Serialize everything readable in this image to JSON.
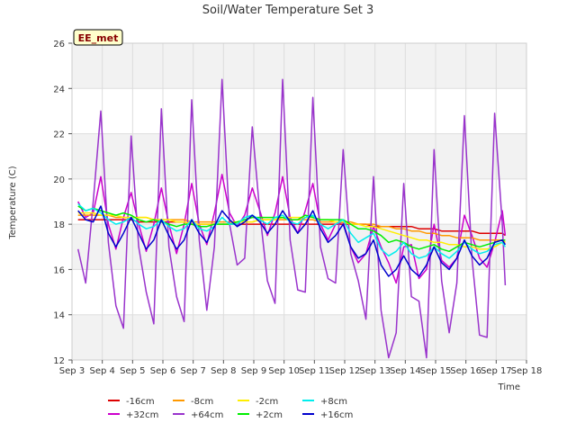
{
  "chart_data": {
    "type": "line",
    "title": "Soil/Water Temperature Set 3",
    "xlabel": "Time",
    "ylabel": "Temperature (C)",
    "annotation": "EE_met",
    "xlim": [
      3,
      18
    ],
    "ylim": [
      12,
      26
    ],
    "x_ticks": [
      {
        "value": 3,
        "label": "Sep 3"
      },
      {
        "value": 4,
        "label": "Sep 4"
      },
      {
        "value": 5,
        "label": "Sep 5"
      },
      {
        "value": 6,
        "label": "Sep 6"
      },
      {
        "value": 7,
        "label": "Sep 7"
      },
      {
        "value": 8,
        "label": "Sep 8"
      },
      {
        "value": 9,
        "label": "Sep 9"
      },
      {
        "value": 10,
        "label": "Sep 10"
      },
      {
        "value": 11,
        "label": "Sep 11"
      },
      {
        "value": 12,
        "label": "Sep 12"
      },
      {
        "value": 13,
        "label": "Sep 13"
      },
      {
        "value": 14,
        "label": "Sep 14"
      },
      {
        "value": 15,
        "label": "Sep 15"
      },
      {
        "value": 16,
        "label": "Sep 16"
      },
      {
        "value": 17,
        "label": "Sep 17"
      },
      {
        "value": 18,
        "label": "Sep 18"
      }
    ],
    "y_ticks": [
      12,
      14,
      16,
      18,
      20,
      22,
      24,
      26
    ],
    "grid": true,
    "bands": "alternating light gray",
    "legend_position": "bottom",
    "x_sample": [
      3.2,
      3.45,
      3.7,
      3.95,
      4.2,
      4.45,
      4.7,
      4.95,
      5.2,
      5.45,
      5.7,
      5.95,
      6.2,
      6.45,
      6.7,
      6.95,
      7.2,
      7.45,
      7.7,
      7.95,
      8.2,
      8.45,
      8.7,
      8.95,
      9.2,
      9.45,
      9.7,
      9.95,
      10.2,
      10.45,
      10.7,
      10.95,
      11.2,
      11.45,
      11.7,
      11.95,
      12.2,
      12.45,
      12.7,
      12.95,
      13.2,
      13.45,
      13.7,
      13.95,
      14.2,
      14.45,
      14.7,
      14.95,
      15.2,
      15.45,
      15.7,
      15.95,
      16.2,
      16.45,
      16.7,
      16.95,
      17.2,
      17.3
    ],
    "series": [
      {
        "name": "-16cm",
        "color": "#dd0000",
        "values": [
          18.2,
          18.2,
          18.2,
          18.2,
          18.2,
          18.2,
          18.2,
          18.2,
          18.1,
          18.1,
          18.1,
          18.1,
          18.1,
          18.1,
          18.1,
          18.0,
          18.0,
          18.0,
          18.0,
          18.0,
          18.0,
          18.0,
          18.0,
          18.0,
          18.0,
          18.0,
          18.0,
          18.0,
          18.0,
          18.0,
          18.0,
          18.0,
          18.0,
          18.0,
          18.0,
          18.0,
          18.0,
          18.0,
          18.0,
          17.9,
          17.9,
          17.9,
          17.9,
          17.9,
          17.9,
          17.8,
          17.8,
          17.8,
          17.7,
          17.7,
          17.7,
          17.7,
          17.7,
          17.6,
          17.6,
          17.6,
          17.6,
          17.5
        ]
      },
      {
        "name": "+32cm",
        "color": "#cc00cc",
        "values": [
          19.0,
          18.3,
          18.5,
          20.1,
          18.0,
          16.9,
          18.3,
          19.4,
          18.0,
          16.8,
          18.0,
          19.6,
          18.0,
          16.7,
          18.0,
          19.8,
          18.0,
          17.1,
          18.5,
          20.2,
          18.5,
          17.9,
          18.4,
          19.6,
          18.6,
          17.5,
          18.5,
          20.1,
          18.3,
          17.6,
          18.6,
          19.8,
          18.0,
          17.3,
          18.0,
          18.1,
          17.0,
          16.3,
          16.7,
          17.9,
          17.0,
          16.3,
          15.4,
          17.0,
          17.1,
          15.6,
          16.0,
          18.0,
          16.4,
          16.1,
          16.5,
          18.4,
          17.5,
          16.5,
          16.1,
          17.2,
          18.6,
          17.5
        ]
      },
      {
        "name": "-8cm",
        "color": "#ff9900",
        "values": [
          18.4,
          18.4,
          18.4,
          18.4,
          18.4,
          18.3,
          18.3,
          18.3,
          18.3,
          18.3,
          18.2,
          18.2,
          18.2,
          18.2,
          18.2,
          18.1,
          18.1,
          18.1,
          18.1,
          18.1,
          18.1,
          18.1,
          18.1,
          18.1,
          18.2,
          18.2,
          18.2,
          18.2,
          18.2,
          18.2,
          18.2,
          18.2,
          18.1,
          18.1,
          18.1,
          18.1,
          18.1,
          18.0,
          18.0,
          18.0,
          17.9,
          17.9,
          17.8,
          17.8,
          17.7,
          17.7,
          17.6,
          17.6,
          17.5,
          17.5,
          17.4,
          17.4,
          17.4,
          17.3,
          17.3,
          17.3,
          17.3,
          17.2
        ]
      },
      {
        "name": "+64cm",
        "color": "#9933cc",
        "values": [
          16.9,
          15.4,
          19.0,
          23.0,
          17.2,
          14.4,
          13.4,
          21.9,
          17.0,
          15.0,
          13.6,
          23.1,
          17.0,
          14.8,
          13.7,
          23.5,
          17.3,
          14.2,
          17.0,
          24.4,
          18.0,
          16.2,
          16.5,
          22.3,
          18.5,
          15.5,
          14.5,
          24.4,
          17.3,
          15.1,
          15.0,
          23.6,
          17.0,
          15.6,
          15.4,
          21.3,
          16.7,
          15.5,
          13.8,
          20.1,
          14.2,
          12.1,
          13.2,
          19.8,
          14.8,
          14.6,
          12.1,
          21.3,
          15.5,
          13.2,
          15.4,
          22.8,
          16.5,
          13.1,
          13.0,
          22.9,
          18.0,
          15.3
        ]
      },
      {
        "name": "-2cm",
        "color": "#ffee00",
        "values": [
          18.5,
          18.5,
          18.5,
          18.4,
          18.4,
          18.4,
          18.3,
          18.3,
          18.3,
          18.3,
          18.2,
          18.2,
          18.2,
          18.1,
          18.1,
          18.0,
          18.0,
          18.0,
          18.0,
          18.0,
          18.0,
          18.1,
          18.1,
          18.1,
          18.2,
          18.2,
          18.2,
          18.3,
          18.3,
          18.3,
          18.3,
          18.3,
          18.2,
          18.2,
          18.1,
          18.1,
          18.0,
          18.0,
          17.9,
          17.9,
          17.8,
          17.7,
          17.6,
          17.5,
          17.4,
          17.3,
          17.3,
          17.2,
          17.2,
          17.1,
          17.1,
          17.0,
          17.0,
          16.9,
          16.9,
          17.0,
          17.2,
          17.2
        ]
      },
      {
        "name": "+2cm",
        "color": "#00ee00",
        "values": [
          18.8,
          18.6,
          18.7,
          18.6,
          18.5,
          18.4,
          18.5,
          18.4,
          18.2,
          18.1,
          18.2,
          18.1,
          18.0,
          17.9,
          18.0,
          18.0,
          17.9,
          17.9,
          18.0,
          18.0,
          18.0,
          18.1,
          18.2,
          18.3,
          18.3,
          18.3,
          18.3,
          18.3,
          18.2,
          18.2,
          18.4,
          18.3,
          18.2,
          18.2,
          18.2,
          18.2,
          18.0,
          17.8,
          17.8,
          17.7,
          17.5,
          17.2,
          17.3,
          17.2,
          17.0,
          16.9,
          17.0,
          17.1,
          16.9,
          16.8,
          17.0,
          17.2,
          17.1,
          17.0,
          17.1,
          17.2,
          17.3,
          17.3
        ]
      },
      {
        "name": "+8cm",
        "color": "#00eeee",
        "values": [
          18.9,
          18.6,
          18.7,
          18.5,
          18.2,
          18.0,
          18.1,
          18.3,
          18.0,
          17.8,
          17.9,
          18.2,
          17.9,
          17.7,
          17.8,
          18.2,
          17.8,
          17.7,
          17.9,
          18.3,
          18.0,
          18.0,
          18.3,
          18.4,
          18.2,
          18.0,
          18.3,
          18.4,
          18.1,
          18.0,
          18.3,
          18.4,
          18.0,
          17.8,
          18.0,
          18.2,
          17.6,
          17.2,
          17.4,
          17.6,
          16.9,
          16.6,
          16.8,
          17.2,
          16.7,
          16.5,
          16.6,
          17.0,
          16.7,
          16.5,
          16.8,
          17.2,
          16.9,
          16.7,
          16.8,
          17.1,
          17.2,
          17.0
        ]
      },
      {
        "name": "+16cm",
        "color": "#0000cc",
        "values": [
          18.6,
          18.2,
          18.1,
          18.8,
          17.6,
          17.0,
          17.6,
          18.3,
          17.6,
          16.9,
          17.3,
          18.2,
          17.5,
          16.9,
          17.3,
          18.2,
          17.6,
          17.2,
          17.9,
          18.6,
          18.2,
          17.9,
          18.1,
          18.4,
          18.1,
          17.6,
          18.0,
          18.6,
          18.1,
          17.6,
          18.0,
          18.6,
          17.8,
          17.2,
          17.5,
          18.0,
          17.0,
          16.5,
          16.7,
          17.3,
          16.2,
          15.7,
          16.0,
          16.6,
          16.0,
          15.7,
          16.2,
          17.0,
          16.3,
          16.0,
          16.5,
          17.3,
          16.6,
          16.2,
          16.5,
          17.2,
          17.3,
          17.1
        ]
      }
    ]
  }
}
